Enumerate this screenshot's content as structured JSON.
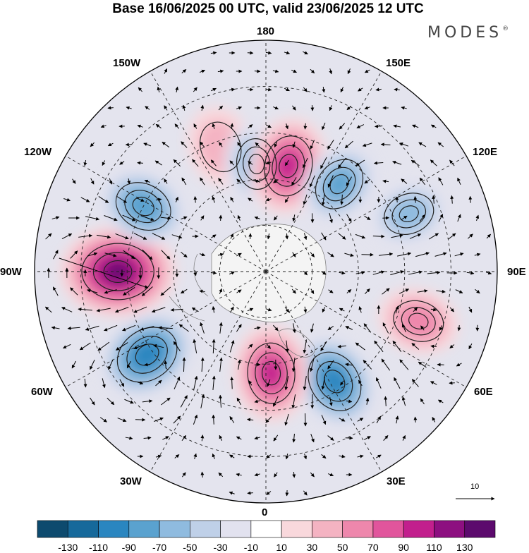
{
  "title": "Base 16/06/2025 00 UTC, valid 23/06/2025 12 UTC",
  "logo": {
    "text": "MODES",
    "mark": "®"
  },
  "longitude_labels": {
    "top": "180",
    "bottom": "0",
    "left": "90W",
    "right": "90E",
    "w150": "150W",
    "e150": "150E",
    "w120": "120W",
    "e120": "120E",
    "w60": "60W",
    "e60": "60E",
    "w30": "30W",
    "e30": "30E"
  },
  "reference_vector": {
    "value": "10"
  },
  "colorbar": {
    "ticks": [
      "-130",
      "-110",
      "-90",
      "-70",
      "-50",
      "-30",
      "-10",
      "10",
      "30",
      "50",
      "70",
      "90",
      "110",
      "130"
    ],
    "colors": [
      "#0d4a6e",
      "#16699b",
      "#2a86c0",
      "#5aa2cf",
      "#8fbbdf",
      "#bfd0e8",
      "#e2e2ef",
      "#ffffff",
      "#f9d8dc",
      "#f4b3c2",
      "#ee87ac",
      "#e1559c",
      "#c21f8d",
      "#8d0f80",
      "#5c0a6d"
    ]
  },
  "anomaly_centers": [
    {
      "lon": -160,
      "lat": 47,
      "value": 40
    },
    {
      "lon": -175,
      "lat": 55,
      "value": -60
    },
    {
      "lon": 168,
      "lat": 55,
      "value": 90
    },
    {
      "lon": 140,
      "lat": 53,
      "value": -70
    },
    {
      "lon": 112,
      "lat": 40,
      "value": -55
    },
    {
      "lon": 72,
      "lat": 38,
      "value": 60
    },
    {
      "lon": 32,
      "lat": 48,
      "value": -95
    },
    {
      "lon": 3,
      "lat": 57,
      "value": 90
    },
    {
      "lon": -55,
      "lat": 43,
      "value": -100
    },
    {
      "lon": -90,
      "lat": 42,
      "value": 125
    },
    {
      "lon": -118,
      "lat": 45,
      "value": -80
    }
  ]
}
